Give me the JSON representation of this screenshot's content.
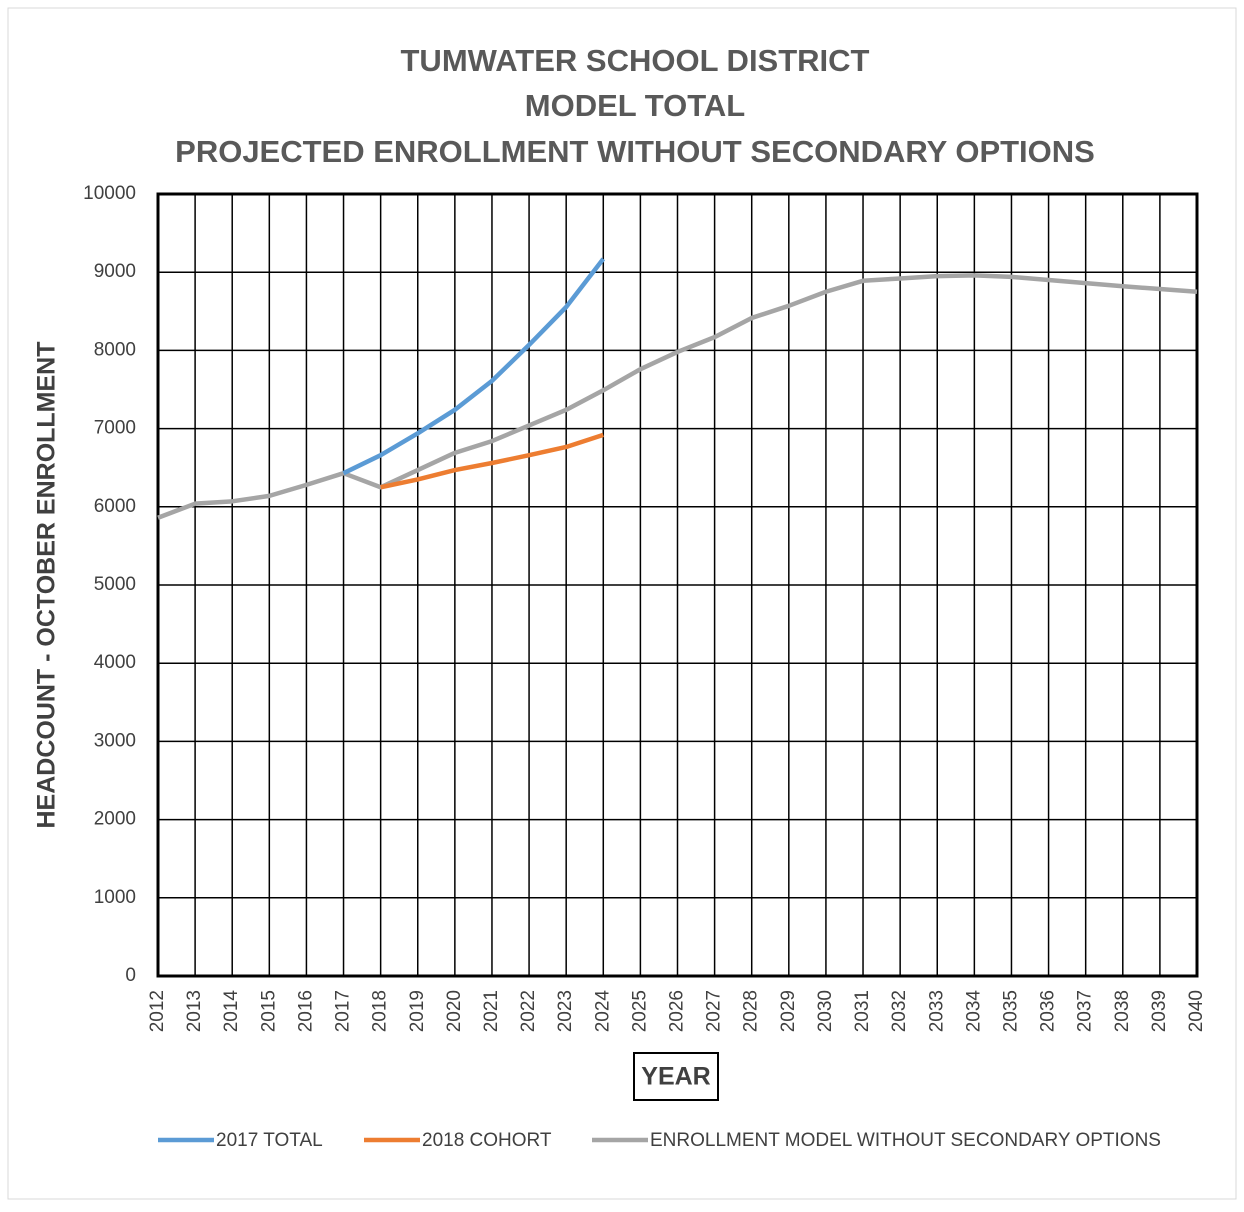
{
  "chart_data": {
    "type": "line",
    "title": [
      "TUMWATER SCHOOL DISTRICT",
      "MODEL TOTAL",
      "PROJECTED ENROLLMENT WITHOUT SECONDARY OPTIONS"
    ],
    "x_label": "YEAR",
    "y_label": "HEADCOUNT - OCTOBER ENROLLMENT",
    "x": [
      2012,
      2013,
      2014,
      2015,
      2016,
      2017,
      2018,
      2019,
      2020,
      2021,
      2022,
      2023,
      2024,
      2025,
      2026,
      2027,
      2028,
      2029,
      2030,
      2031,
      2032,
      2033,
      2034,
      2035,
      2036,
      2037,
      2038,
      2039,
      2040
    ],
    "series": [
      {
        "name": "2017 TOTAL",
        "color": "#5b9bd5",
        "values": [
          null,
          null,
          null,
          null,
          null,
          6430,
          6660,
          6940,
          7240,
          7610,
          8070,
          8555,
          9170,
          null,
          null,
          null,
          null,
          null,
          null,
          null,
          null,
          null,
          null,
          null,
          null,
          null,
          null,
          null,
          null
        ]
      },
      {
        "name": "2018 COHORT",
        "color": "#ed7d31",
        "values": [
          null,
          null,
          null,
          null,
          null,
          null,
          6250,
          6350,
          6470,
          6560,
          6660,
          6765,
          6920,
          null,
          null,
          null,
          null,
          null,
          null,
          null,
          null,
          null,
          null,
          null,
          null,
          null,
          null,
          null,
          null
        ]
      },
      {
        "name": "ENROLLMENT MODEL WITHOUT SECONDARY OPTIONS",
        "color": "#a5a5a5",
        "values": [
          5860,
          6040,
          6070,
          6140,
          6280,
          6430,
          6250,
          6470,
          6690,
          6840,
          7040,
          7240,
          7490,
          7760,
          7980,
          8170,
          8415,
          8570,
          8750,
          8890,
          8920,
          8950,
          8960,
          8940,
          8900,
          8860,
          8820,
          8785,
          8750
        ]
      }
    ],
    "xlim": [
      2012,
      2040
    ],
    "xticks": [
      2012,
      2013,
      2014,
      2015,
      2016,
      2017,
      2018,
      2019,
      2020,
      2021,
      2022,
      2023,
      2024,
      2025,
      2026,
      2027,
      2028,
      2029,
      2030,
      2031,
      2032,
      2033,
      2034,
      2035,
      2036,
      2037,
      2038,
      2039,
      2040
    ],
    "ylim": [
      0,
      10000
    ],
    "yticks": [
      0,
      1000,
      2000,
      3000,
      4000,
      5000,
      6000,
      7000,
      8000,
      9000,
      10000
    ],
    "grid": true,
    "legend": "bottom"
  }
}
